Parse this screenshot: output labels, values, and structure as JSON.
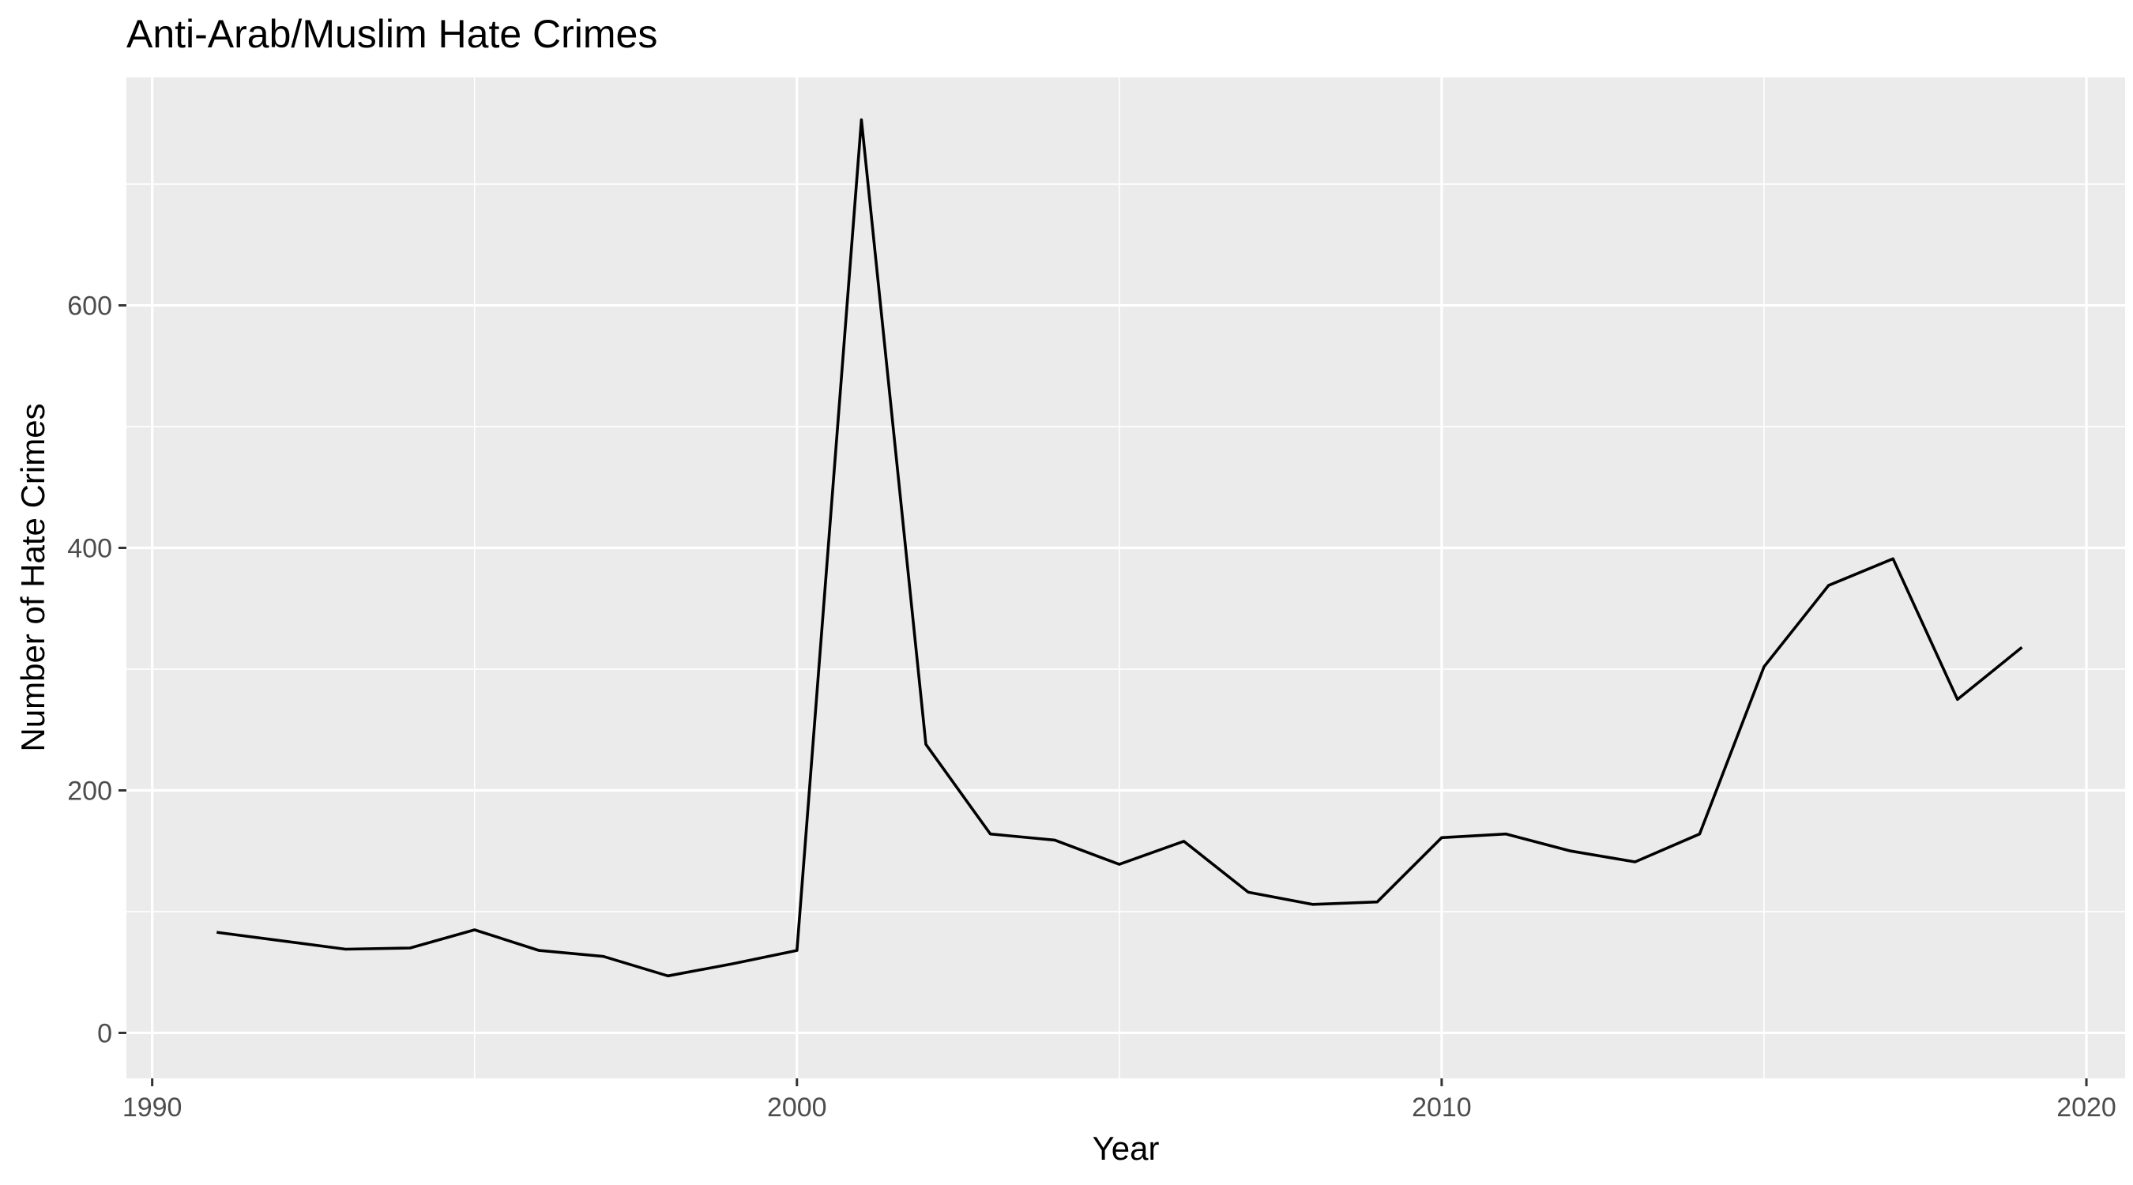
{
  "chart_data": {
    "type": "line",
    "title": "Anti-Arab/Muslim Hate Crimes",
    "xlabel": "Year",
    "ylabel": "Number of Hate Crimes",
    "xlim": [
      1989.6,
      2020.6
    ],
    "ylim": [
      -37.5,
      788
    ],
    "x_ticks": [
      1990,
      2000,
      2010,
      2020
    ],
    "x_tick_labels": [
      "1990",
      "2000",
      "2010",
      "2020"
    ],
    "x_minor_ticks": [
      1995,
      2005,
      2015
    ],
    "y_ticks": [
      0,
      200,
      400,
      600
    ],
    "y_tick_labels": [
      "0",
      "200",
      "400",
      "600"
    ],
    "y_minor_ticks": [
      100,
      300,
      500,
      700
    ],
    "grid": true,
    "legend": "none",
    "line_color": "#000000",
    "panel_color": "#ebebeb",
    "x": [
      1991,
      1992,
      1993,
      1994,
      1995,
      1996,
      1997,
      1998,
      1999,
      2000,
      2001,
      2002,
      2003,
      2004,
      2005,
      2006,
      2007,
      2008,
      2009,
      2010,
      2011,
      2012,
      2013,
      2014,
      2015,
      2016,
      2017,
      2018,
      2019
    ],
    "y": [
      83,
      76,
      69,
      70,
      85,
      68,
      63,
      47,
      57,
      68,
      753,
      238,
      164,
      159,
      139,
      158,
      116,
      106,
      108,
      161,
      164,
      150,
      141,
      164,
      302,
      369,
      391,
      275,
      318
    ]
  }
}
